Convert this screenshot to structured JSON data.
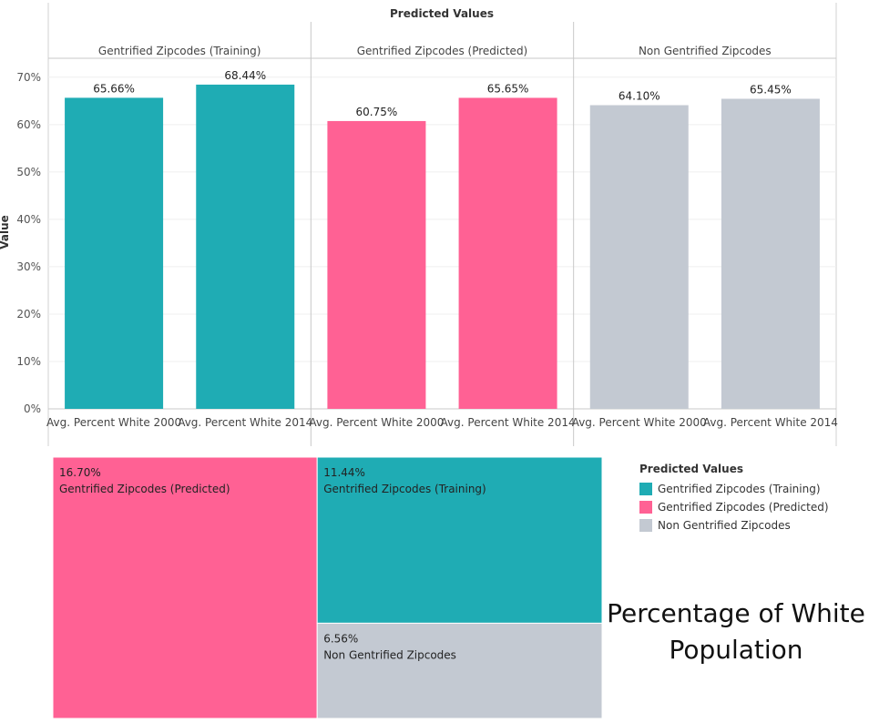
{
  "chart_data": [
    {
      "type": "bar",
      "title": "Predicted Values",
      "ylabel": "Value",
      "ylim": [
        0,
        74
      ],
      "yticks": [
        "0%",
        "10%",
        "20%",
        "30%",
        "40%",
        "50%",
        "60%",
        "70%"
      ],
      "ytick_values": [
        0,
        10,
        20,
        30,
        40,
        50,
        60,
        70
      ],
      "panels": [
        {
          "name": "Gentrified Zipcodes (Training)",
          "color": "#1FACB4",
          "categories": [
            "Avg. Percent White 2000",
            "Avg. Percent White 2014"
          ],
          "values": [
            65.66,
            68.44
          ],
          "labels": [
            "65.66%",
            "68.44%"
          ]
        },
        {
          "name": "Gentrified Zipcodes (Predicted)",
          "color": "#FF6194",
          "categories": [
            "Avg. Percent White 2000",
            "Avg. Percent White 2014"
          ],
          "values": [
            60.75,
            65.65
          ],
          "labels": [
            "60.75%",
            "65.65%"
          ]
        },
        {
          "name": "Non Gentrified Zipcodes",
          "color": "#C3C9D2",
          "categories": [
            "Avg. Percent White 2000",
            "Avg. Percent White 2014"
          ],
          "values": [
            64.1,
            65.45
          ],
          "labels": [
            "64.10%",
            "65.45%"
          ]
        }
      ]
    },
    {
      "type": "treemap",
      "items": [
        {
          "name": "Gentrified Zipcodes (Predicted)",
          "value": 16.7,
          "label": "16.70%",
          "color": "#FF6194"
        },
        {
          "name": "Gentrified Zipcodes (Training)",
          "value": 11.44,
          "label": "11.44%",
          "color": "#1FACB4"
        },
        {
          "name": "Non Gentrified Zipcodes",
          "value": 6.56,
          "label": "6.56%",
          "color": "#C3C9D2"
        }
      ]
    }
  ],
  "legend": {
    "title": "Predicted Values",
    "items": [
      {
        "label": "Gentrified Zipcodes (Training)",
        "color": "#1FACB4"
      },
      {
        "label": "Gentrified Zipcodes (Predicted)",
        "color": "#FF6194"
      },
      {
        "label": "Non Gentrified Zipcodes",
        "color": "#C3C9D2"
      }
    ]
  },
  "big_title": "Percentage of White\nPopulation"
}
